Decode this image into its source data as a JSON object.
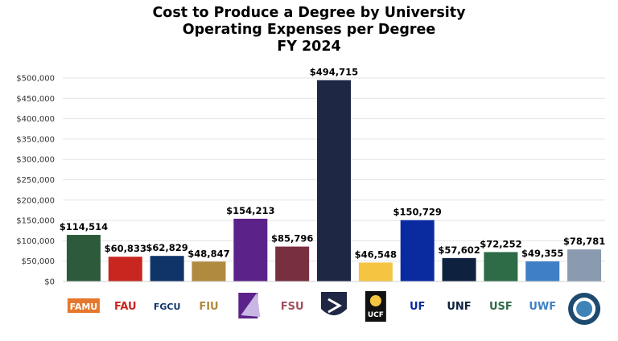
{
  "chart_data": {
    "type": "bar",
    "title": [
      "Cost to Produce a Degree by University",
      "Operating Expenses per Degree",
      "FY 2024"
    ],
    "xlabel": "",
    "ylabel": "",
    "ylim": [
      0,
      500000
    ],
    "yticks": [
      0,
      50000,
      100000,
      150000,
      200000,
      250000,
      300000,
      350000,
      400000,
      450000,
      500000
    ],
    "ytick_labels": [
      "$0",
      "$50,000",
      "$100,000",
      "$150,000",
      "$200,000",
      "$250,000",
      "$300,000",
      "$350,000",
      "$400,000",
      "$450,000",
      "$500,000"
    ],
    "grid": true,
    "legend": "none",
    "categories": [
      "FAMU",
      "FLORIDA ATLANTIC UNIVERSITY",
      "FGCU",
      "FIU",
      "New College logo",
      "FSU",
      "Florida Poly logo",
      "UCF",
      "UF UNIVERSITY of FLORIDA",
      "UNF UNIVERSITY of NORTH FLORIDA",
      "UNIVERSITY of SOUTH FLORIDA",
      "UNIVERSITY of WEST FLORIDA",
      "State seal"
    ],
    "values": [
      114514,
      60833,
      62829,
      48847,
      154213,
      85796,
      494715,
      46548,
      150729,
      57602,
      72252,
      49355,
      78781
    ],
    "data_labels": [
      "$114,514",
      "$60,833",
      "$62,829",
      "$48,847",
      "$154,213",
      "$85,796",
      "$494,715",
      "$46,548",
      "$150,729",
      "$57,602",
      "$72,252",
      "$49,355",
      "$78,781"
    ],
    "colors": [
      "#2d5a3a",
      "#c8261f",
      "#0f3468",
      "#b08a3e",
      "#5b2289",
      "#782f40",
      "#1e2744",
      "#f5c542",
      "#0a2ba0",
      "#0e2240",
      "#2e6b47",
      "#3f7fc5",
      "#8a9bb0"
    ]
  }
}
